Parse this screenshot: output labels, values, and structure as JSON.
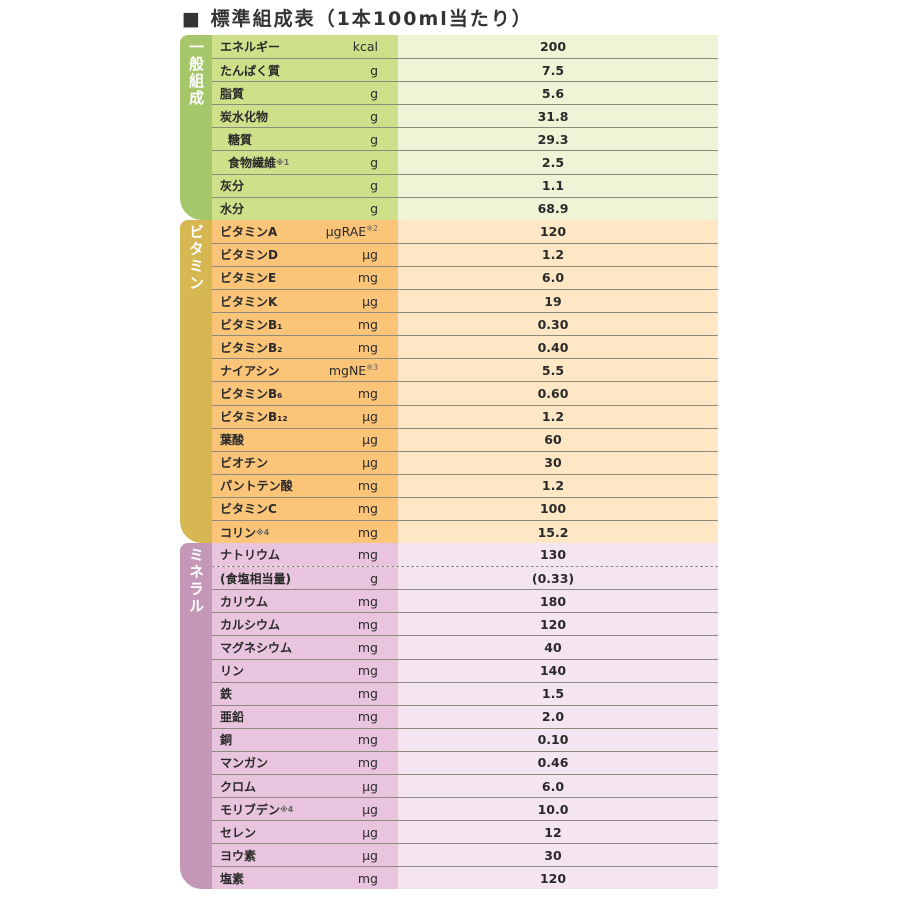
{
  "title": "■ 標準組成表（1本100ml当たり）",
  "colors": {
    "general": "#a6c66a",
    "vitamin": "#d6b752",
    "mineral": "#c497b6"
  },
  "sections": [
    {
      "label": "一般組成",
      "key": "gen",
      "rows": [
        {
          "name": "エネルギー",
          "unit": "kcal",
          "value": "200"
        },
        {
          "name": "たんぱく質",
          "unit": "g",
          "value": "7.5"
        },
        {
          "name": "脂質",
          "unit": "g",
          "value": "5.6"
        },
        {
          "name": "炭水化物",
          "unit": "g",
          "value": "31.8"
        },
        {
          "name": "糖質",
          "unit": "g",
          "value": "29.3",
          "indent": true
        },
        {
          "name": "食物繊維",
          "note": "※1",
          "unit": "g",
          "value": "2.5",
          "indent": true
        },
        {
          "name": "灰分",
          "unit": "g",
          "value": "1.1"
        },
        {
          "name": "水分",
          "unit": "g",
          "value": "68.9"
        }
      ]
    },
    {
      "label": "ビタミン",
      "key": "vit",
      "rows": [
        {
          "name": "ビタミンA",
          "unit": "μgRAE",
          "unit_note": "※2",
          "value": "120"
        },
        {
          "name": "ビタミンD",
          "unit": "μg",
          "value": "1.2"
        },
        {
          "name": "ビタミンE",
          "unit": "mg",
          "value": "6.0"
        },
        {
          "name": "ビタミンK",
          "unit": "μg",
          "value": "19"
        },
        {
          "name": "ビタミンB₁",
          "unit": "mg",
          "value": "0.30"
        },
        {
          "name": "ビタミンB₂",
          "unit": "mg",
          "value": "0.40"
        },
        {
          "name": "ナイアシン",
          "unit": "mgNE",
          "unit_note": "※3",
          "value": "5.5"
        },
        {
          "name": "ビタミンB₆",
          "unit": "mg",
          "value": "0.60"
        },
        {
          "name": "ビタミンB₁₂",
          "unit": "μg",
          "value": "1.2"
        },
        {
          "name": "葉酸",
          "unit": "μg",
          "value": "60"
        },
        {
          "name": "ビオチン",
          "unit": "μg",
          "value": "30"
        },
        {
          "name": "パントテン酸",
          "unit": "mg",
          "value": "1.2"
        },
        {
          "name": "ビタミンC",
          "unit": "mg",
          "value": "100"
        },
        {
          "name": "コリン",
          "note": "※4",
          "unit": "mg",
          "value": "15.2"
        }
      ]
    },
    {
      "label": "ミネラル",
      "key": "min",
      "rows": [
        {
          "name": "ナトリウム",
          "unit": "mg",
          "value": "130"
        },
        {
          "name": "(食塩相当量)",
          "unit": "g",
          "value": "(0.33)",
          "dotted": true
        },
        {
          "name": "カリウム",
          "unit": "mg",
          "value": "180"
        },
        {
          "name": "カルシウム",
          "unit": "mg",
          "value": "120"
        },
        {
          "name": "マグネシウム",
          "unit": "mg",
          "value": "40"
        },
        {
          "name": "リン",
          "unit": "mg",
          "value": "140"
        },
        {
          "name": "鉄",
          "unit": "mg",
          "value": "1.5"
        },
        {
          "name": "亜鉛",
          "unit": "mg",
          "value": "2.0"
        },
        {
          "name": "銅",
          "unit": "mg",
          "value": "0.10"
        },
        {
          "name": "マンガン",
          "unit": "mg",
          "value": "0.46"
        },
        {
          "name": "クロム",
          "unit": "μg",
          "value": "6.0"
        },
        {
          "name": "モリブデン",
          "note": "※4",
          "unit": "μg",
          "value": "10.0"
        },
        {
          "name": "セレン",
          "unit": "μg",
          "value": "12"
        },
        {
          "name": "ヨウ素",
          "unit": "μg",
          "value": "30"
        },
        {
          "name": "塩素",
          "unit": "mg",
          "value": "120"
        }
      ]
    }
  ]
}
